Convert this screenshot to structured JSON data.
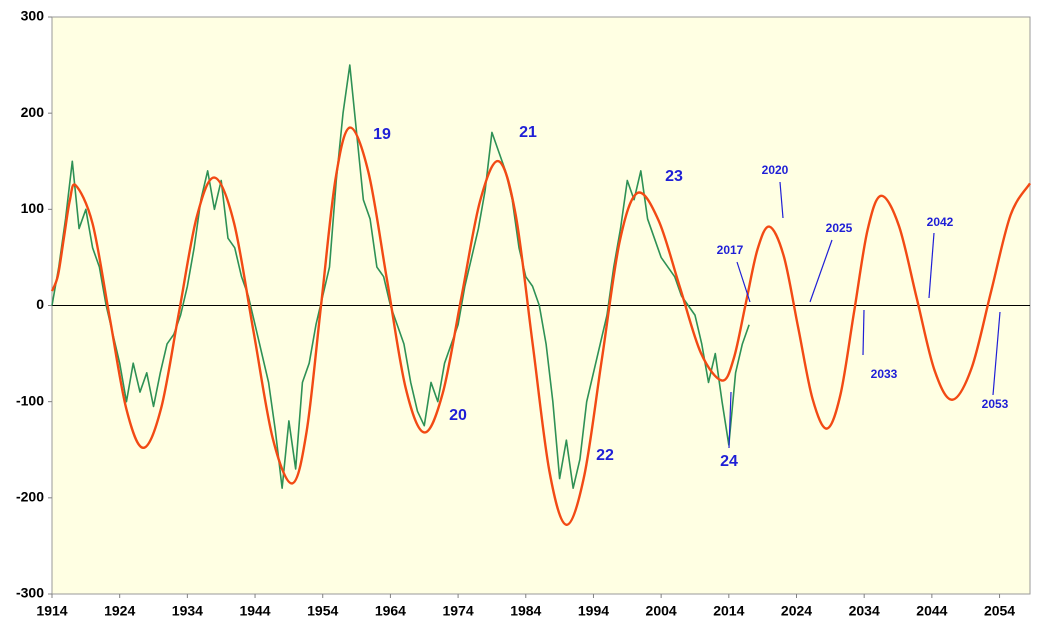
{
  "chart_data": {
    "type": "line",
    "xlim": [
      1914,
      2058.5
    ],
    "ylim": [
      -300,
      300
    ],
    "xticks": [
      1914,
      1924,
      1934,
      1944,
      1954,
      1964,
      1974,
      1984,
      1994,
      2004,
      2014,
      2024,
      2034,
      2044,
      2054
    ],
    "yticks": [
      -300,
      -200,
      -100,
      0,
      100,
      200,
      300
    ],
    "grid": false,
    "series": [
      {
        "color": "#2e9155",
        "x": [
          1914,
          1915,
          1916,
          1917,
          1918,
          1919,
          1920,
          1921,
          1922,
          1923,
          1924,
          1925,
          1926,
          1927,
          1928,
          1929,
          1930,
          1931,
          1932,
          1933,
          1934,
          1935,
          1936,
          1937,
          1938,
          1939,
          1940,
          1941,
          1942,
          1943,
          1944,
          1945,
          1946,
          1947,
          1948,
          1949,
          1950,
          1951,
          1952,
          1953,
          1954,
          1955,
          1956,
          1957,
          1958,
          1959,
          1960,
          1961,
          1962,
          1963,
          1964,
          1965,
          1966,
          1967,
          1968,
          1969,
          1970,
          1971,
          1972,
          1973,
          1974,
          1975,
          1976,
          1977,
          1978,
          1979,
          1980,
          1981,
          1982,
          1983,
          1984,
          1985,
          1986,
          1987,
          1988,
          1989,
          1990,
          1991,
          1992,
          1993,
          1994,
          1995,
          1996,
          1997,
          1998,
          1999,
          2000,
          2001,
          2002,
          2003,
          2004,
          2005,
          2006,
          2007,
          2008,
          2009,
          2010,
          2011,
          2012,
          2013,
          2014,
          2015,
          2016,
          2017
        ],
        "values": [
          0,
          40,
          90,
          150,
          80,
          100,
          60,
          40,
          0,
          -30,
          -60,
          -100,
          -60,
          -90,
          -70,
          -105,
          -70,
          -40,
          -30,
          -10,
          20,
          60,
          110,
          140,
          100,
          130,
          70,
          60,
          30,
          10,
          -20,
          -50,
          -80,
          -130,
          -190,
          -120,
          -170,
          -80,
          -60,
          -20,
          10,
          40,
          130,
          200,
          250,
          180,
          110,
          90,
          40,
          30,
          0,
          -20,
          -40,
          -80,
          -110,
          -125,
          -80,
          -100,
          -60,
          -40,
          -20,
          20,
          50,
          80,
          120,
          180,
          160,
          140,
          110,
          60,
          30,
          20,
          0,
          -40,
          -100,
          -180,
          -140,
          -190,
          -160,
          -100,
          -70,
          -40,
          -10,
          40,
          80,
          130,
          110,
          140,
          90,
          70,
          50,
          40,
          30,
          10,
          0,
          -10,
          -40,
          -80,
          -50,
          -100,
          -145,
          -70,
          -40,
          -20
        ]
      },
      {
        "color": "#f24a14",
        "x": [
          1914,
          1914.875,
          1915.75,
          1916.625,
          1917.5,
          1920,
          1922.5,
          1925,
          1927.5,
          1930.125,
          1932.75,
          1935.375,
          1938,
          1940.875,
          1943.75,
          1946.625,
          1949.5,
          1951.625,
          1953.75,
          1955.875,
          1958,
          1960.75,
          1963.5,
          1966.25,
          1969,
          1971.75,
          1974.5,
          1977.25,
          1980,
          1982.5,
          1985,
          1987.5,
          1990,
          1992.625,
          1995.25,
          1997.875,
          2000.5,
          2003.625,
          2006.75,
          2009.875,
          2013,
          2014.75,
          2016.5,
          2018.25,
          2020,
          2022.125,
          2024.25,
          2026.375,
          2028.5,
          2030.5,
          2032.5,
          2034.5,
          2036.5,
          2039.125,
          2041.75,
          2044.375,
          2047,
          2049.875,
          2052.75,
          2055.625,
          2058.5
        ],
        "values": [
          15,
          31.1,
          70,
          108.9,
          125,
          85,
          -11.5,
          -108,
          -148,
          -106.8,
          -7.5,
          91.8,
          133,
          86.4,
          -26,
          -138.4,
          -185,
          -130.8,
          0,
          130.8,
          185,
          138.6,
          26.5,
          -85.6,
          -132,
          -90.7,
          9,
          108.7,
          150,
          94.6,
          -39,
          -172.6,
          -228,
          -177.5,
          -55.5,
          66.5,
          117,
          88.4,
          19.5,
          -49.4,
          -78,
          -54.6,
          2,
          58.6,
          82,
          51.2,
          -23,
          -97.2,
          -128,
          -92.5,
          -7,
          78.5,
          114,
          83,
          8,
          -67,
          -98,
          -65,
          14.5,
          94,
          127
        ]
      }
    ],
    "annotations": [
      "19",
      "20",
      "21",
      "22",
      "23",
      "24"
    ],
    "callouts": [
      "2017",
      "2020",
      "2025",
      "2033",
      "2042",
      "2053"
    ]
  }
}
